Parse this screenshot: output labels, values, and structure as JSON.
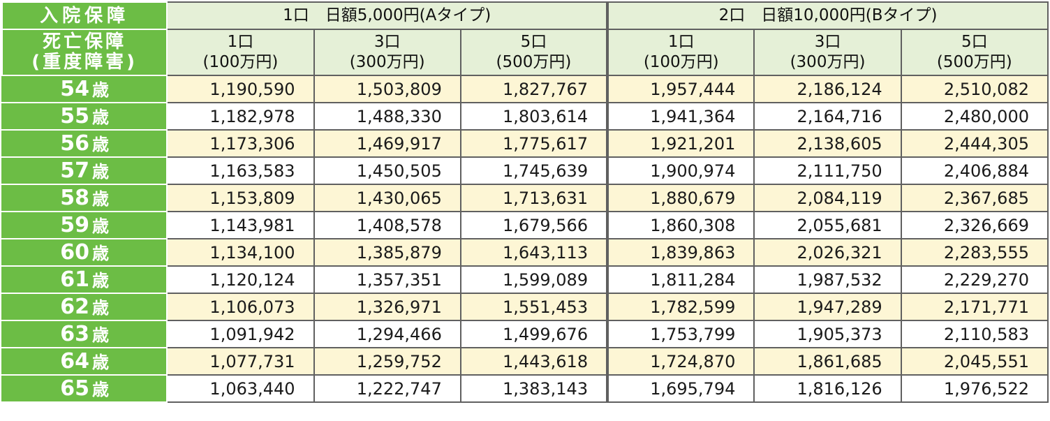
{
  "header": {
    "left_top": "入院保障",
    "left_bottom_line1": "死亡保障",
    "left_bottom_line2": "(重度障害)",
    "group_a": "1口　日額5,000円(Aタイプ)",
    "group_b": "2口　日額10,000円(Bタイプ)",
    "sub_cols": [
      {
        "units": "1口",
        "amount": "(100万円)"
      },
      {
        "units": "3口",
        "amount": "(300万円)"
      },
      {
        "units": "5口",
        "amount": "(500万円)"
      },
      {
        "units": "1口",
        "amount": "(100万円)"
      },
      {
        "units": "3口",
        "amount": "(300万円)"
      },
      {
        "units": "5口",
        "amount": "(500万円)"
      }
    ]
  },
  "age_suffix": "歳",
  "rows": [
    {
      "age": "54",
      "values": [
        "1,190,590",
        "1,503,809",
        "1,827,767",
        "1,957,444",
        "2,186,124",
        "2,510,082"
      ]
    },
    {
      "age": "55",
      "values": [
        "1,182,978",
        "1,488,330",
        "1,803,614",
        "1,941,364",
        "2,164,716",
        "2,480,000"
      ]
    },
    {
      "age": "56",
      "values": [
        "1,173,306",
        "1,469,917",
        "1,775,617",
        "1,921,201",
        "2,138,605",
        "2,444,305"
      ]
    },
    {
      "age": "57",
      "values": [
        "1,163,583",
        "1,450,505",
        "1,745,639",
        "1,900,974",
        "2,111,750",
        "2,406,884"
      ]
    },
    {
      "age": "58",
      "values": [
        "1,153,809",
        "1,430,065",
        "1,713,631",
        "1,880,679",
        "2,084,119",
        "2,367,685"
      ]
    },
    {
      "age": "59",
      "values": [
        "1,143,981",
        "1,408,578",
        "1,679,566",
        "1,860,308",
        "2,055,681",
        "2,326,669"
      ]
    },
    {
      "age": "60",
      "values": [
        "1,134,100",
        "1,385,879",
        "1,643,113",
        "1,839,863",
        "2,026,321",
        "2,283,555"
      ]
    },
    {
      "age": "61",
      "values": [
        "1,120,124",
        "1,357,351",
        "1,599,089",
        "1,811,284",
        "1,987,532",
        "2,229,270"
      ]
    },
    {
      "age": "62",
      "values": [
        "1,106,073",
        "1,326,971",
        "1,551,453",
        "1,782,599",
        "1,947,289",
        "2,171,771"
      ]
    },
    {
      "age": "63",
      "values": [
        "1,091,942",
        "1,294,466",
        "1,499,676",
        "1,753,799",
        "1,905,373",
        "2,110,583"
      ]
    },
    {
      "age": "64",
      "values": [
        "1,077,731",
        "1,259,752",
        "1,443,618",
        "1,724,870",
        "1,861,685",
        "2,045,551"
      ]
    },
    {
      "age": "65",
      "values": [
        "1,063,440",
        "1,222,747",
        "1,383,143",
        "1,695,794",
        "1,816,126",
        "1,976,522"
      ]
    }
  ],
  "colors": {
    "green": "#6cbd45",
    "header_bg": "#e5f0d7",
    "odd_row_bg": "#fdf6d5",
    "even_row_bg": "#ffffff"
  }
}
